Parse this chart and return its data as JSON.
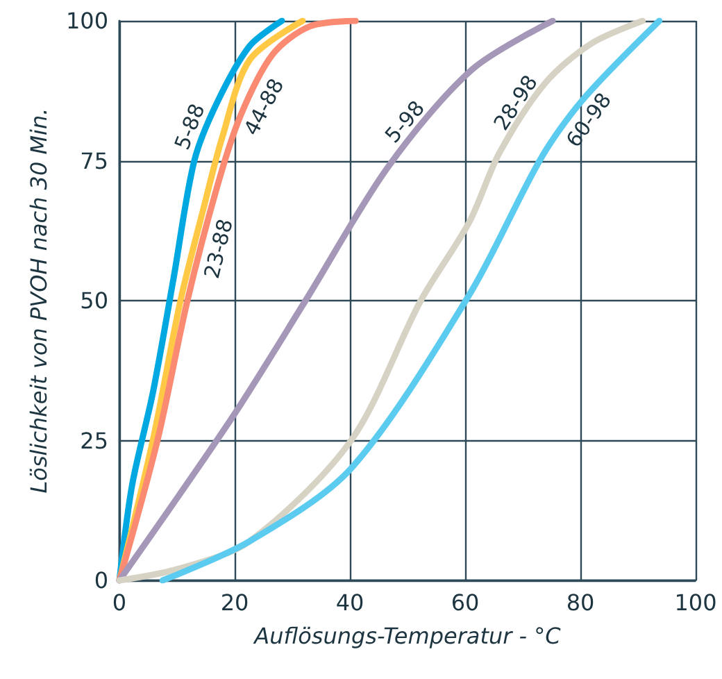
{
  "chart_data": {
    "type": "line",
    "xlabel": "Auflösungs-Temperatur - °C",
    "ylabel": "Löslichkeit von PVOH nach 30 Min.",
    "xlim": [
      0,
      100
    ],
    "xticks": [
      0,
      20,
      40,
      60,
      80,
      100
    ],
    "ylim": [
      0,
      100
    ],
    "yticks": [
      0,
      25,
      50,
      75,
      100
    ],
    "grid": true,
    "marker": "none",
    "line_style": "solid",
    "series": [
      {
        "name": "5-88",
        "color": "#00a8e1",
        "x": [
          0,
          2.2,
          5.8,
          9.4,
          13,
          17,
          22.6,
          28.2
        ],
        "values": [
          0,
          17,
          33.5,
          54,
          75,
          85.5,
          95.5,
          100
        ]
      },
      {
        "name": "23-88",
        "color": "#ffc845",
        "x": [
          0,
          5.8,
          10.6,
          14.6,
          17.8,
          22.6,
          31.8
        ],
        "values": [
          0,
          25,
          50,
          66.5,
          79,
          93,
          100
        ]
      },
      {
        "name": "44-88",
        "color": "#fb8a72",
        "x": [
          0,
          6.6,
          11.8,
          17,
          21,
          26.6,
          33,
          41
        ],
        "values": [
          0,
          25,
          50,
          70.5,
          83,
          94,
          99,
          100
        ]
      },
      {
        "name": "5-98",
        "color": "#a497b8",
        "x": [
          0,
          19.5,
          32.3,
          46.7,
          61.2,
          75.2
        ],
        "values": [
          0,
          29,
          50,
          74,
          91.3,
          100
        ]
      },
      {
        "name": "28-98",
        "color": "#d6d2c4",
        "x": [
          0,
          10,
          22.6,
          40.2,
          52.3,
          60.7,
          66,
          74,
          82,
          90.8
        ],
        "values": [
          0,
          2,
          7,
          25,
          50,
          64,
          76.5,
          89,
          96,
          100
        ]
      },
      {
        "name": "60-98",
        "color": "#5bcbf0",
        "x": [
          7.5,
          22.6,
          40.2,
          60.7,
          73.2,
          80.5,
          93.7
        ],
        "values": [
          0,
          7,
          20,
          51,
          75.5,
          86,
          100
        ]
      }
    ]
  }
}
